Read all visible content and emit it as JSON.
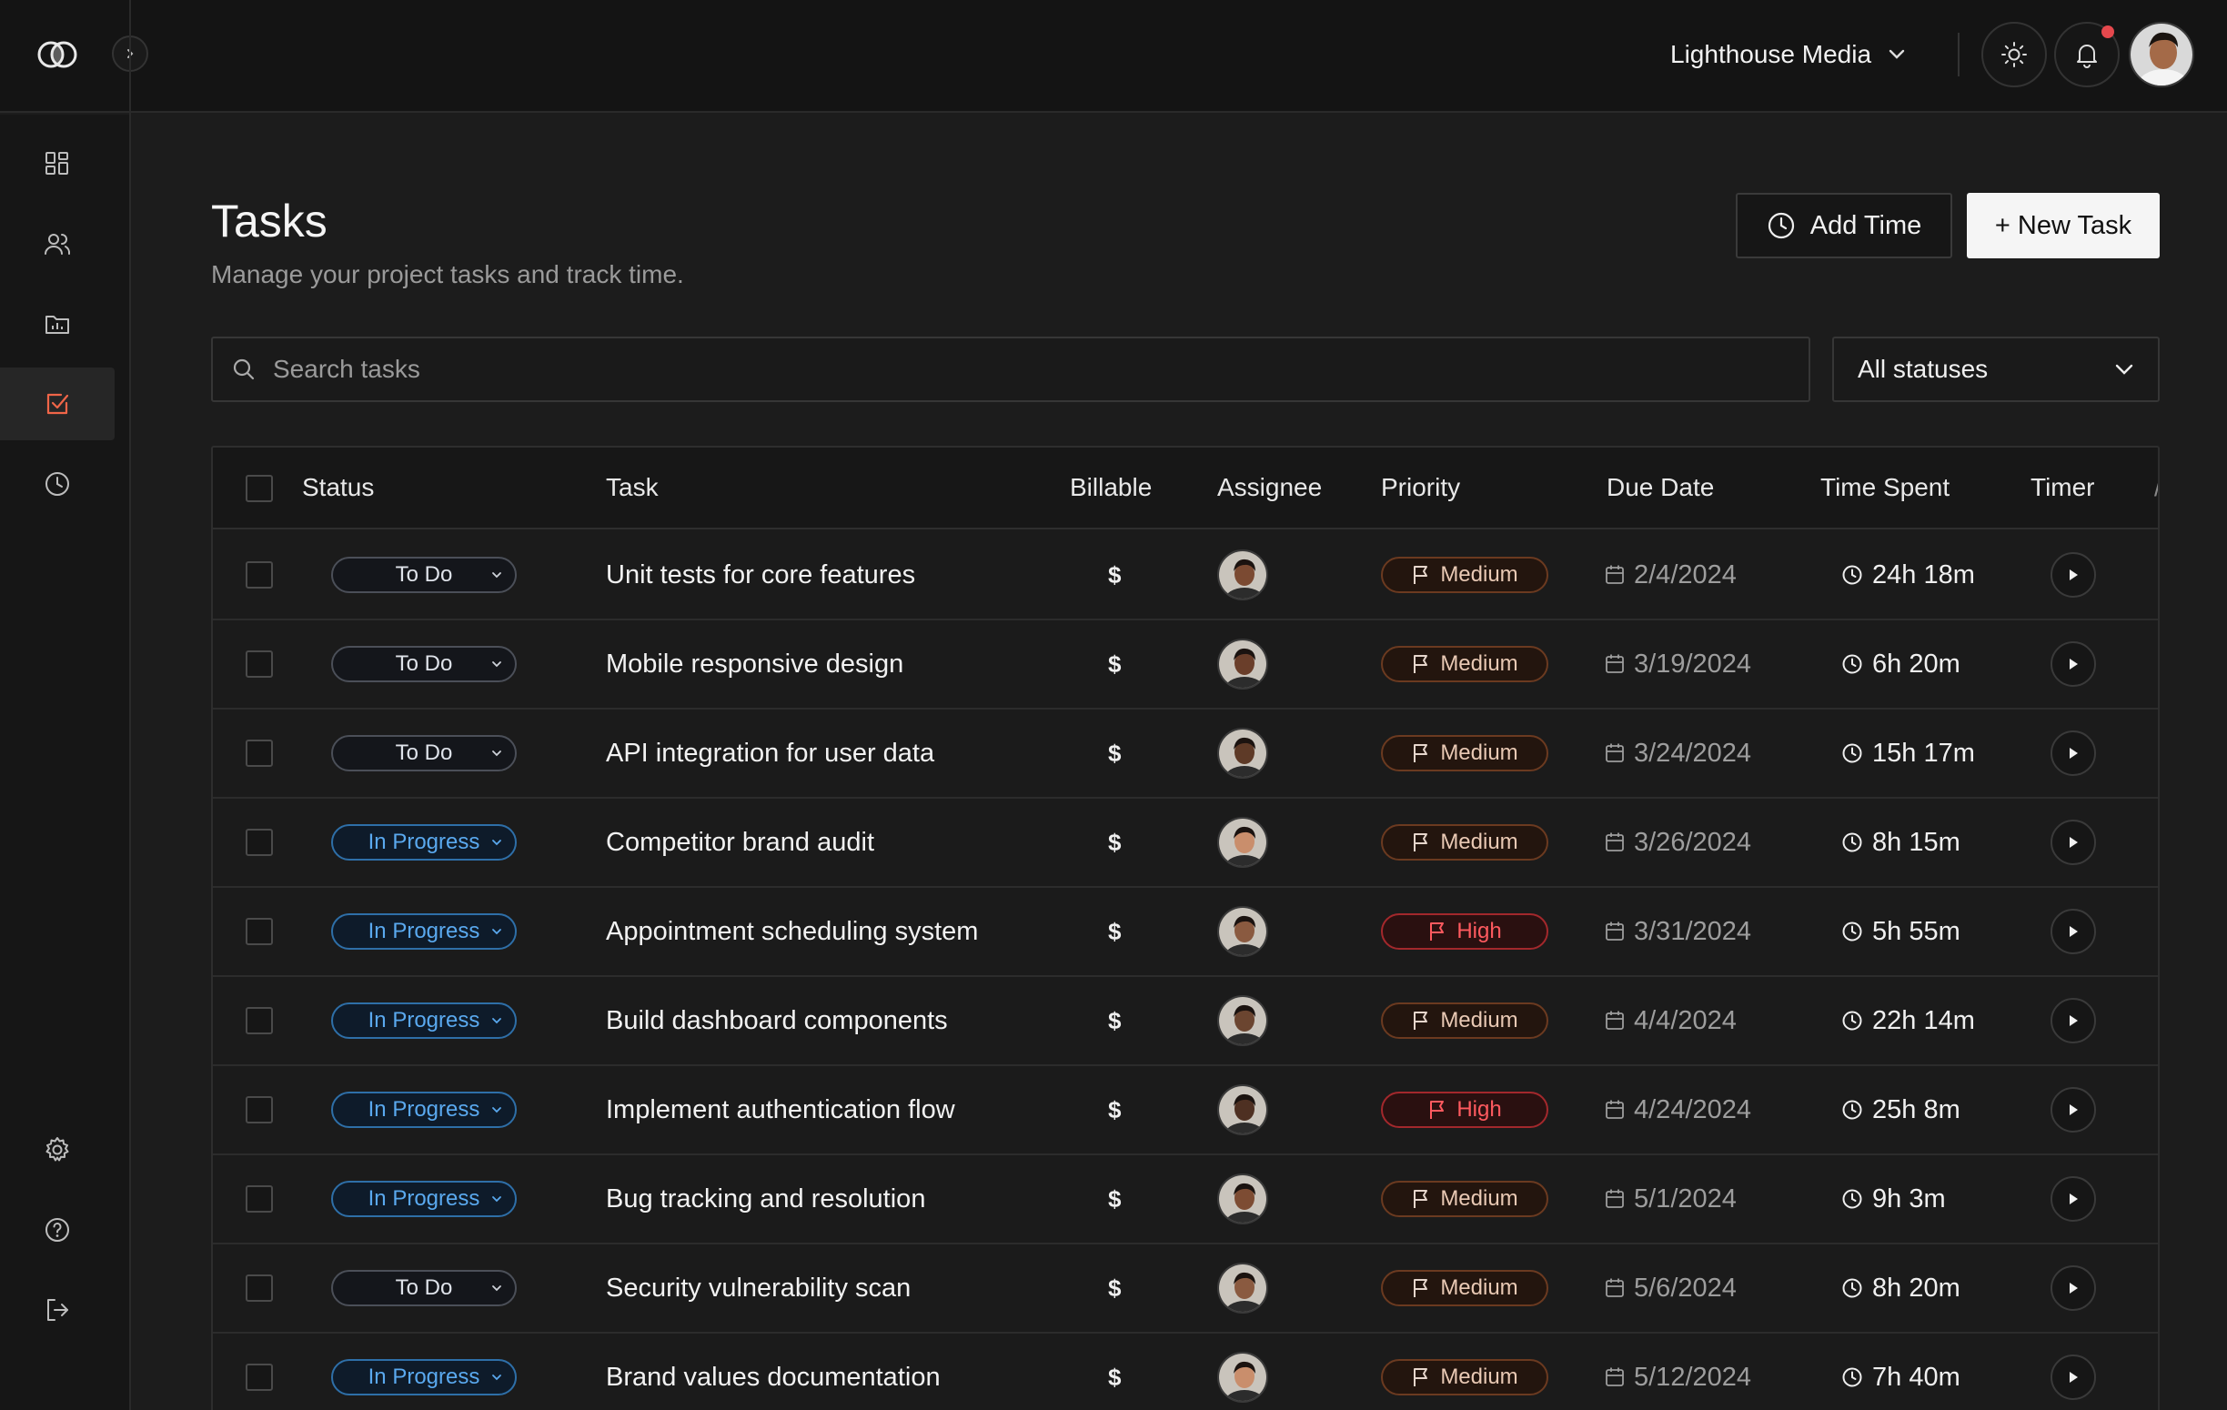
{
  "header": {
    "workspace_name": "Lighthouse Media",
    "icons": [
      "logo-icon",
      "chevron-right-icon",
      "chevron-down-icon",
      "sun-icon",
      "bell-icon",
      "avatar"
    ]
  },
  "sidebar": {
    "items": [
      {
        "name": "dashboard",
        "icon": "grid-icon",
        "active": false
      },
      {
        "name": "team",
        "icon": "users-icon",
        "active": false
      },
      {
        "name": "projects",
        "icon": "folder-chart-icon",
        "active": false
      },
      {
        "name": "tasks",
        "icon": "check-square-icon",
        "active": true
      },
      {
        "name": "time",
        "icon": "clock-icon",
        "active": false
      }
    ],
    "bottom_items": [
      {
        "name": "settings",
        "icon": "gear-icon"
      },
      {
        "name": "help",
        "icon": "help-circle-icon"
      },
      {
        "name": "logout",
        "icon": "logout-icon"
      }
    ]
  },
  "page": {
    "title": "Tasks",
    "subtitle": "Manage your project tasks and track time.",
    "add_time_label": "Add Time",
    "new_task_label": "+ New Task"
  },
  "search": {
    "placeholder": "Search tasks",
    "value": ""
  },
  "filter": {
    "selected": "All statuses"
  },
  "table": {
    "columns": [
      "Status",
      "Task",
      "Billable",
      "Assignee",
      "Priority",
      "Due Date",
      "Time Spent",
      "Timer"
    ],
    "rows": [
      {
        "status": "To Do",
        "task": "Unit tests for core features",
        "billable": "$",
        "priority": "Medium",
        "due": "2/4/2024",
        "spent": "24h 18m"
      },
      {
        "status": "To Do",
        "task": "Mobile responsive design",
        "billable": "$",
        "priority": "Medium",
        "due": "3/19/2024",
        "spent": "6h 20m"
      },
      {
        "status": "To Do",
        "task": "API integration for user data",
        "billable": "$",
        "priority": "Medium",
        "due": "3/24/2024",
        "spent": "15h 17m"
      },
      {
        "status": "In Progress",
        "task": "Competitor brand audit",
        "billable": "$",
        "priority": "Medium",
        "due": "3/26/2024",
        "spent": "8h 15m"
      },
      {
        "status": "In Progress",
        "task": "Appointment scheduling system",
        "billable": "$",
        "priority": "High",
        "due": "3/31/2024",
        "spent": "5h 55m"
      },
      {
        "status": "In Progress",
        "task": "Build dashboard components",
        "billable": "$",
        "priority": "Medium",
        "due": "4/4/2024",
        "spent": "22h 14m"
      },
      {
        "status": "In Progress",
        "task": "Implement authentication flow",
        "billable": "$",
        "priority": "High",
        "due": "4/24/2024",
        "spent": "25h 8m"
      },
      {
        "status": "In Progress",
        "task": "Bug tracking and resolution",
        "billable": "$",
        "priority": "Medium",
        "due": "5/1/2024",
        "spent": "9h 3m"
      },
      {
        "status": "To Do",
        "task": "Security vulnerability scan",
        "billable": "$",
        "priority": "Medium",
        "due": "5/6/2024",
        "spent": "8h 20m"
      },
      {
        "status": "In Progress",
        "task": "Brand values documentation",
        "billable": "$",
        "priority": "Medium",
        "due": "5/12/2024",
        "spent": "7h 40m"
      }
    ]
  },
  "colors": {
    "accent": "#e5484d",
    "in_progress": "#5aa9ef",
    "high_priority": "#ff5a5f",
    "medium_priority_border": "#6b3a20",
    "avatar_skins": [
      "#7b4a32",
      "#6a3e2a",
      "#5e3a27",
      "#c98e6c",
      "#8a5a40",
      "#6b4530",
      "#4e3022",
      "#7d4c33",
      "#8a5a40",
      "#c98e6c"
    ]
  }
}
